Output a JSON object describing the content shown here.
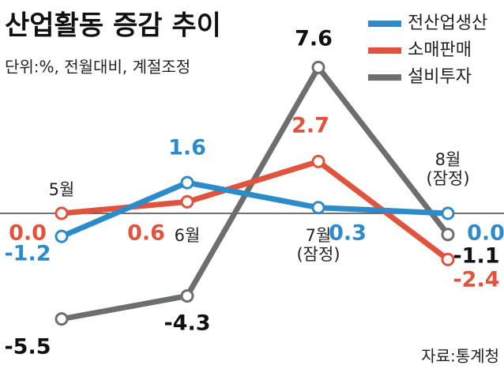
{
  "chart_data": {
    "type": "line",
    "title": "산업활동 증감 추이",
    "subtitle": "단위:%, 전월대비, 계절조정",
    "source": "자료:통계청",
    "categories": [
      "5월",
      "6월",
      "7월\n(잠정)",
      "8월\n(잠정)"
    ],
    "ylim": [
      -6,
      8
    ],
    "series": [
      {
        "name": "전산업생산",
        "color": "#2e8bc9",
        "values": [
          -1.2,
          1.6,
          0.3,
          0.0
        ],
        "value_labels": [
          "-1.2",
          "1.6",
          "0.3",
          "0.0"
        ]
      },
      {
        "name": "소매판매",
        "color": "#e0533d",
        "values": [
          0.0,
          0.6,
          2.7,
          -2.4
        ],
        "value_labels": [
          "0.0",
          "0.6",
          "2.7",
          "-2.4"
        ]
      },
      {
        "name": "설비투자",
        "color": "#6d6e70",
        "values": [
          -5.5,
          -4.3,
          7.6,
          -1.1
        ],
        "value_labels": [
          "-5.5",
          "-4.3",
          "7.6",
          "-1.1"
        ]
      }
    ]
  }
}
